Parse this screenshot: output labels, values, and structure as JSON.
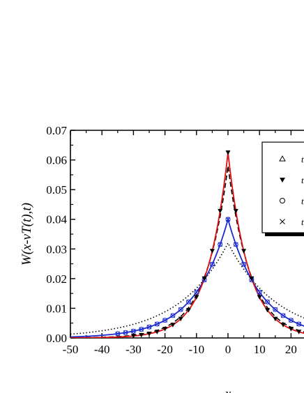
{
  "chart_data": {
    "type": "line",
    "xlabel": "x",
    "ylabel": "W(x-vT(t),t)",
    "xlim": [
      -50,
      25
    ],
    "ylim": [
      0,
      0.07
    ],
    "xticks": [
      "-50",
      "-40",
      "-30",
      "-20",
      "-10",
      "0",
      "10",
      "20"
    ],
    "xtick_values": [
      -50,
      -40,
      -30,
      -20,
      -10,
      0,
      10,
      20
    ],
    "yticks": [
      "0.00",
      "0.01",
      "0.02",
      "0.03",
      "0.04",
      "0.05",
      "0.06",
      "0.07"
    ],
    "ytick_values": [
      0,
      0.01,
      0.02,
      0.03,
      0.04,
      0.05,
      0.06,
      0.07
    ],
    "legend": {
      "position": "top-right",
      "entries": [
        {
          "marker": "open-triangle-up",
          "label": "t"
        },
        {
          "marker": "filled-triangle-down",
          "label": "t"
        },
        {
          "marker": "open-circle",
          "label": "t"
        },
        {
          "marker": "cross",
          "label": "t"
        }
      ]
    },
    "series": [
      {
        "style": "solid",
        "color": "#e01010",
        "peak": 0.0625,
        "width": 6.6,
        "x": [
          -50,
          -40,
          -30,
          -20,
          -10,
          -5,
          0,
          5,
          10,
          20,
          25
        ],
        "y": [
          0.0,
          0.0001,
          0.0007,
          0.003,
          0.0136,
          0.0292,
          0.0625,
          0.0292,
          0.0136,
          0.003,
          0.0014
        ]
      },
      {
        "style": "dashed",
        "color": "#000000",
        "peak": 0.058,
        "width": 7.2,
        "x": [
          -50,
          -40,
          -30,
          -20,
          -10,
          -5,
          0,
          5,
          10,
          20,
          25
        ],
        "y": [
          0.0001,
          0.0002,
          0.0009,
          0.0036,
          0.0145,
          0.029,
          0.058,
          0.029,
          0.0145,
          0.0036,
          0.0018
        ]
      },
      {
        "style": "solid",
        "color": "#1a2ad0",
        "peak": 0.04,
        "width": 10.5,
        "x": [
          -50,
          -40,
          -30,
          -20,
          -10,
          -5,
          0,
          5,
          10,
          20,
          25
        ],
        "y": [
          0.0003,
          0.0008,
          0.0023,
          0.0067,
          0.0195,
          0.0281,
          0.04,
          0.0281,
          0.0195,
          0.0067,
          0.004
        ]
      },
      {
        "style": "dotted",
        "color": "#000000",
        "peak": 0.032,
        "width": 15.5,
        "x": [
          -50,
          -40,
          -30,
          -20,
          -10,
          -5,
          0,
          5,
          10,
          20,
          25
        ],
        "y": [
          0.0013,
          0.0027,
          0.0055,
          0.0117,
          0.021,
          0.0262,
          0.032,
          0.0262,
          0.021,
          0.0117,
          0.0085
        ]
      }
    ],
    "markers": {
      "filled_triangle_down": {
        "color": "#000000",
        "x": [
          -30,
          -27.5,
          -25,
          -22.5,
          -20,
          -17.5,
          -15,
          -12.5,
          -10,
          -7.5,
          -5,
          -2.5,
          0,
          2.5,
          5,
          7.5,
          10,
          12.5,
          15,
          17.5,
          20,
          22.5,
          25
        ]
      },
      "open_circle_cross": {
        "color": "#1a2ad0",
        "x": [
          -35,
          -32.5,
          -30,
          -27.5,
          -25,
          -22.5,
          -20,
          -17.5,
          -15,
          -12.5,
          -10,
          -7.5,
          -5,
          -2.5,
          0,
          2.5,
          5,
          7.5,
          10,
          12.5,
          15,
          17.5,
          20,
          22.5,
          25
        ]
      }
    }
  }
}
